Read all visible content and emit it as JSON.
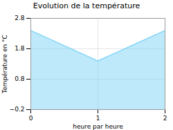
{
  "chart_data": {
    "type": "area",
    "title": "Evolution de la température",
    "xlabel": "heure par heure",
    "ylabel": "Température en °C",
    "x": [
      0,
      1,
      2
    ],
    "values": [
      2.4,
      1.4,
      2.4
    ],
    "xlim": [
      0,
      2
    ],
    "ylim": [
      -0.2,
      2.8
    ],
    "xticks": [
      0,
      1,
      2
    ],
    "yticks": [
      -0.2,
      0.8,
      1.8,
      2.8
    ],
    "grid": true,
    "color": "#6ecff6",
    "line_style": "dotted"
  }
}
